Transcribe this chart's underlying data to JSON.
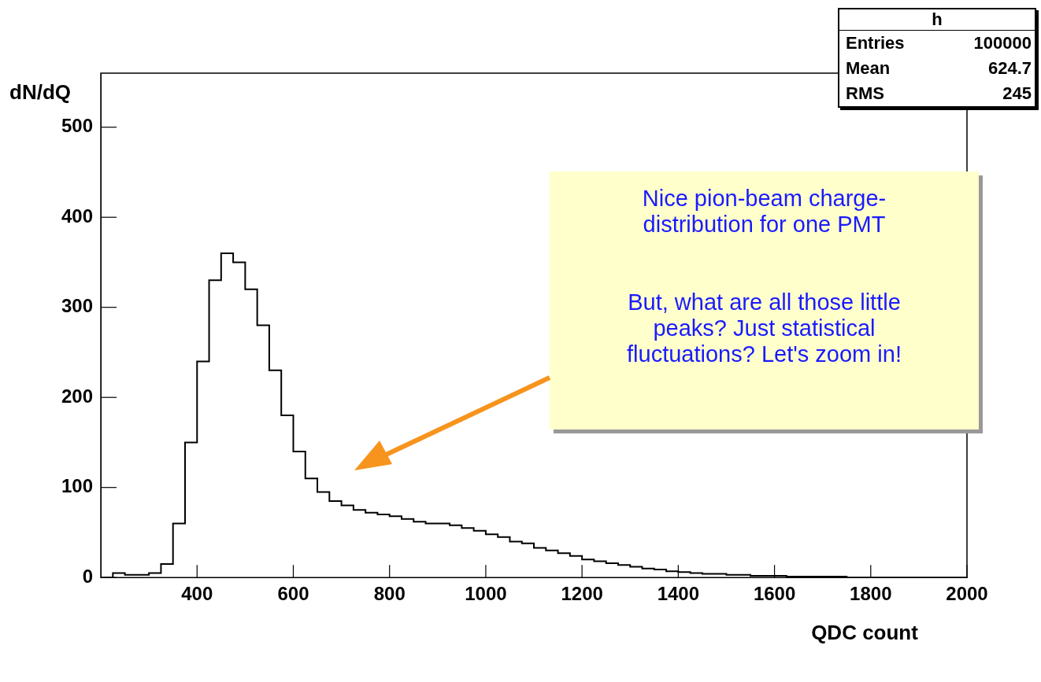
{
  "chart_data": {
    "type": "histogram",
    "xlabel": "QDC count",
    "ylabel": "dN/dQ",
    "bins": [
      200,
      225,
      250,
      275,
      300,
      325,
      350,
      375,
      400,
      425,
      450,
      475,
      500,
      525,
      550,
      575,
      600,
      625,
      650,
      675,
      700,
      725,
      750,
      775,
      800,
      825,
      850,
      875,
      900,
      925,
      950,
      975,
      1000,
      1025,
      1050,
      1075,
      1100,
      1125,
      1150,
      1175,
      1200,
      1225,
      1250,
      1275,
      1300,
      1325,
      1350,
      1375,
      1400,
      1425,
      1450,
      1475,
      1500,
      1525,
      1550,
      1575,
      1600,
      1625,
      1650,
      1675,
      1700,
      1725,
      1750,
      1775,
      1800,
      1825,
      1850,
      1875,
      1900,
      1925,
      1950,
      1975,
      2000
    ],
    "values": [
      0,
      5,
      3,
      3,
      5,
      15,
      60,
      150,
      240,
      330,
      360,
      350,
      320,
      280,
      230,
      180,
      140,
      110,
      95,
      85,
      80,
      75,
      72,
      70,
      68,
      65,
      62,
      60,
      60,
      58,
      55,
      52,
      48,
      45,
      40,
      38,
      33,
      30,
      27,
      24,
      20,
      18,
      16,
      14,
      12,
      10,
      9,
      7,
      6,
      5,
      4,
      4,
      3,
      3,
      2,
      2,
      2,
      1,
      1,
      1,
      1,
      1,
      0,
      0,
      0,
      0,
      0,
      0,
      0,
      0,
      0,
      0
    ],
    "color": "#000000",
    "xlim": [
      200,
      2000
    ],
    "ylim": [
      0,
      560
    ],
    "xticks": [
      400,
      600,
      800,
      1000,
      1200,
      1400,
      1600,
      1800,
      2000
    ],
    "yticks": [
      0,
      100,
      200,
      300,
      400,
      500
    ],
    "grid": false,
    "legend": false,
    "annotations": [
      "h",
      "Entries",
      "100000",
      "Mean",
      "624.7",
      "RMS",
      "245",
      "Nice pion-beam charge-distribution for one PMT",
      "But, what are all those little peaks? Just statistical fluctuations? Let's zoom in!"
    ]
  }
}
